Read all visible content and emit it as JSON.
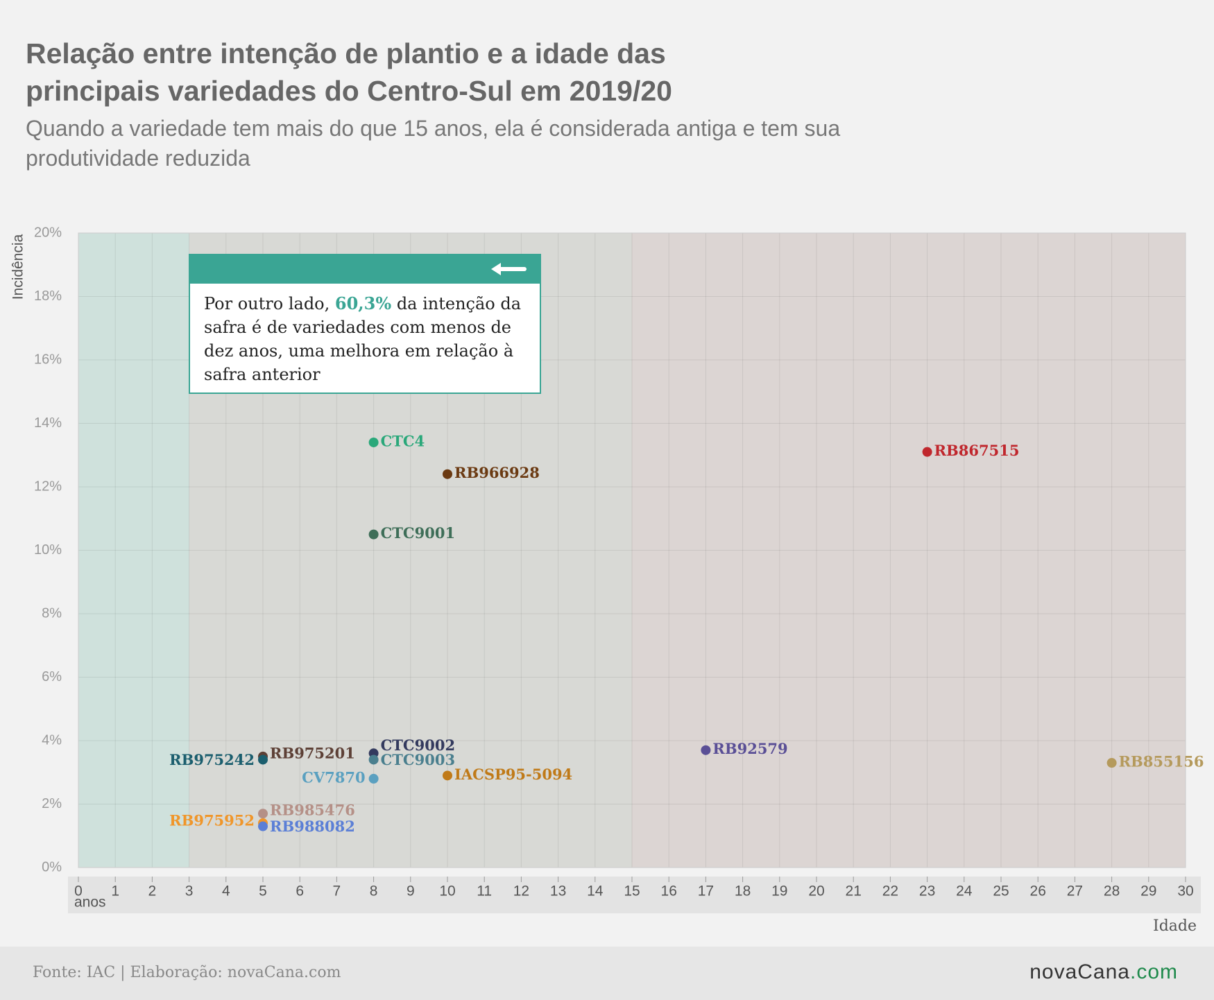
{
  "chart_data": {
    "type": "scatter",
    "title": "Relação entre intenção de plantio e a idade das principais variedades do Centro-Sul em 2019/20",
    "subtitle": "Quando a variedade tem mais do que 15 anos, ela é considerada antiga e tem sua produtividade reduzida",
    "x_label": "Idade",
    "x_unit": "anos",
    "y_label": "Incidência",
    "xlim": [
      0,
      30
    ],
    "xticks": [
      0,
      1,
      2,
      3,
      4,
      5,
      6,
      7,
      8,
      9,
      10,
      11,
      12,
      13,
      14,
      15,
      16,
      17,
      18,
      19,
      20,
      21,
      22,
      23,
      24,
      25,
      26,
      27,
      28,
      29,
      30
    ],
    "ylim": [
      0,
      20
    ],
    "yticks": [
      {
        "value": 0,
        "label": "0%"
      },
      {
        "value": 2,
        "label": "2%"
      },
      {
        "value": 4,
        "label": "4%"
      },
      {
        "value": 6,
        "label": "6%"
      },
      {
        "value": 8,
        "label": "8%"
      },
      {
        "value": 10,
        "label": "10%"
      },
      {
        "value": 12,
        "label": "12%"
      },
      {
        "value": 14,
        "label": "14%"
      },
      {
        "value": 16,
        "label": "16%"
      },
      {
        "value": 18,
        "label": "18%"
      },
      {
        "value": 20,
        "label": "20%"
      }
    ],
    "grid": true,
    "bands": [
      {
        "x": [
          0,
          3
        ],
        "color": "#cfe1dc"
      },
      {
        "x": [
          3,
          15
        ],
        "color": "#d8d9d5"
      },
      {
        "x": [
          15,
          30
        ],
        "color": "#dcd5d3"
      }
    ],
    "series": [
      {
        "name": "CTC4",
        "color": "#2aa87a",
        "x": [
          8
        ],
        "values": [
          13.4
        ]
      },
      {
        "name": "RB966928",
        "color": "#6b3a12",
        "x": [
          10
        ],
        "values": [
          12.4
        ]
      },
      {
        "name": "CTC9001",
        "color": "#3e6e58",
        "x": [
          8
        ],
        "values": [
          10.5
        ]
      },
      {
        "name": "RB867515",
        "color": "#c0272d",
        "x": [
          23
        ],
        "values": [
          13.1
        ]
      },
      {
        "name": "RB92579",
        "color": "#5a4f96",
        "x": [
          17
        ],
        "values": [
          3.7
        ]
      },
      {
        "name": "RB855156",
        "color": "#b59a5c",
        "x": [
          28
        ],
        "values": [
          3.3
        ]
      },
      {
        "name": "RB975201",
        "color": "#5d4036",
        "x": [
          5
        ],
        "values": [
          3.5
        ]
      },
      {
        "name": "RB975242",
        "color": "#1b5e6e",
        "x": [
          5
        ],
        "values": [
          3.4
        ]
      },
      {
        "name": "CTC9002",
        "color": "#333a5e",
        "x": [
          8
        ],
        "values": [
          3.6
        ]
      },
      {
        "name": "CTC9003",
        "color": "#4a7f8e",
        "x": [
          8
        ],
        "values": [
          3.4
        ]
      },
      {
        "name": "CV7870",
        "color": "#5aa0c0",
        "x": [
          8
        ],
        "values": [
          2.8
        ]
      },
      {
        "name": "IACSP95-5094",
        "color": "#c07a18",
        "x": [
          10
        ],
        "values": [
          2.9
        ]
      },
      {
        "name": "RB985476",
        "color": "#b59087",
        "x": [
          5
        ],
        "values": [
          1.7
        ]
      },
      {
        "name": "RB975952",
        "color": "#f0962a",
        "x": [
          5
        ],
        "values": [
          1.4
        ]
      },
      {
        "name": "RB988082",
        "color": "#5b7fd6",
        "x": [
          5
        ],
        "values": [
          1.3
        ]
      }
    ],
    "annotation": {
      "before": "Por outro lado,",
      "highlight": "60,3%",
      "after": "da intenção da safra é de variedades com menos de dez anos, uma melhora em relação à safra anterior"
    },
    "source": "Fonte: IAC | Elaboração: novaCana.com",
    "logo_name": "novaCana",
    "logo_suffix": ".com"
  }
}
